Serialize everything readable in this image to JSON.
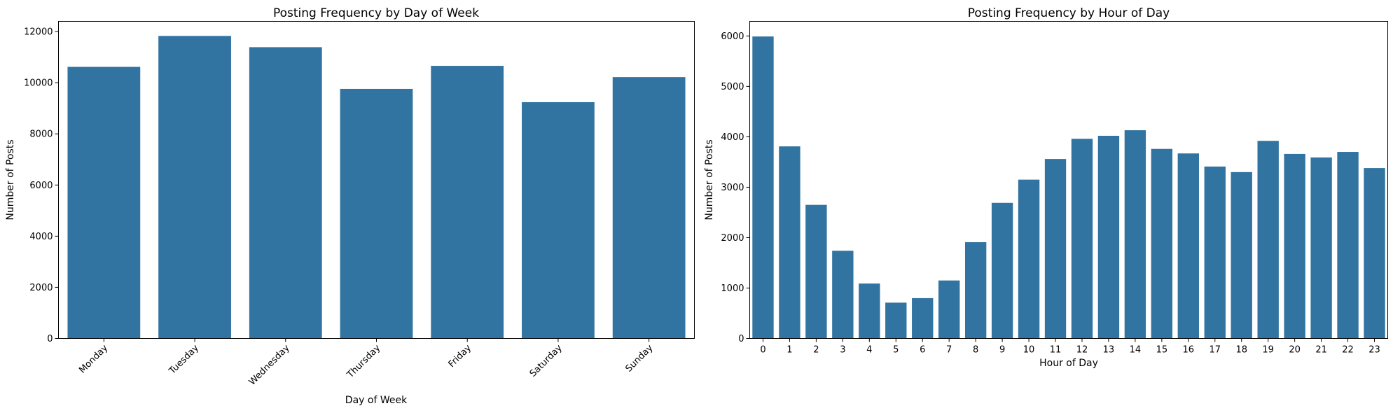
{
  "chart_data": [
    {
      "type": "bar",
      "title": "Posting Frequency by Day of Week",
      "xlabel": "Day of Week",
      "ylabel": "Number of Posts",
      "categories": [
        "Monday",
        "Tuesday",
        "Wednesday",
        "Thursday",
        "Friday",
        "Saturday",
        "Sunday"
      ],
      "values": [
        10620,
        11830,
        11390,
        9760,
        10660,
        9240,
        10220
      ],
      "ylim": [
        0,
        12400
      ],
      "yticks": [
        0,
        2000,
        4000,
        6000,
        8000,
        10000,
        12000
      ],
      "xtick_rotation": 45,
      "bar_color": "#3274a1",
      "grid": false
    },
    {
      "type": "bar",
      "title": "Posting Frequency by Hour of Day",
      "xlabel": "Hour of Day",
      "ylabel": "Number of Posts",
      "categories": [
        "0",
        "1",
        "2",
        "3",
        "4",
        "5",
        "6",
        "7",
        "8",
        "9",
        "10",
        "11",
        "12",
        "13",
        "14",
        "15",
        "16",
        "17",
        "18",
        "19",
        "20",
        "21",
        "22",
        "23"
      ],
      "values": [
        5990,
        3810,
        2650,
        1740,
        1090,
        710,
        800,
        1150,
        1910,
        2690,
        3150,
        3560,
        3960,
        4020,
        4130,
        3760,
        3670,
        3410,
        3300,
        3920,
        3660,
        3590,
        3700,
        3380
      ],
      "ylim": [
        0,
        6290
      ],
      "yticks": [
        0,
        1000,
        2000,
        3000,
        4000,
        5000,
        6000
      ],
      "xtick_rotation": 0,
      "bar_color": "#3274a1",
      "grid": false
    }
  ]
}
